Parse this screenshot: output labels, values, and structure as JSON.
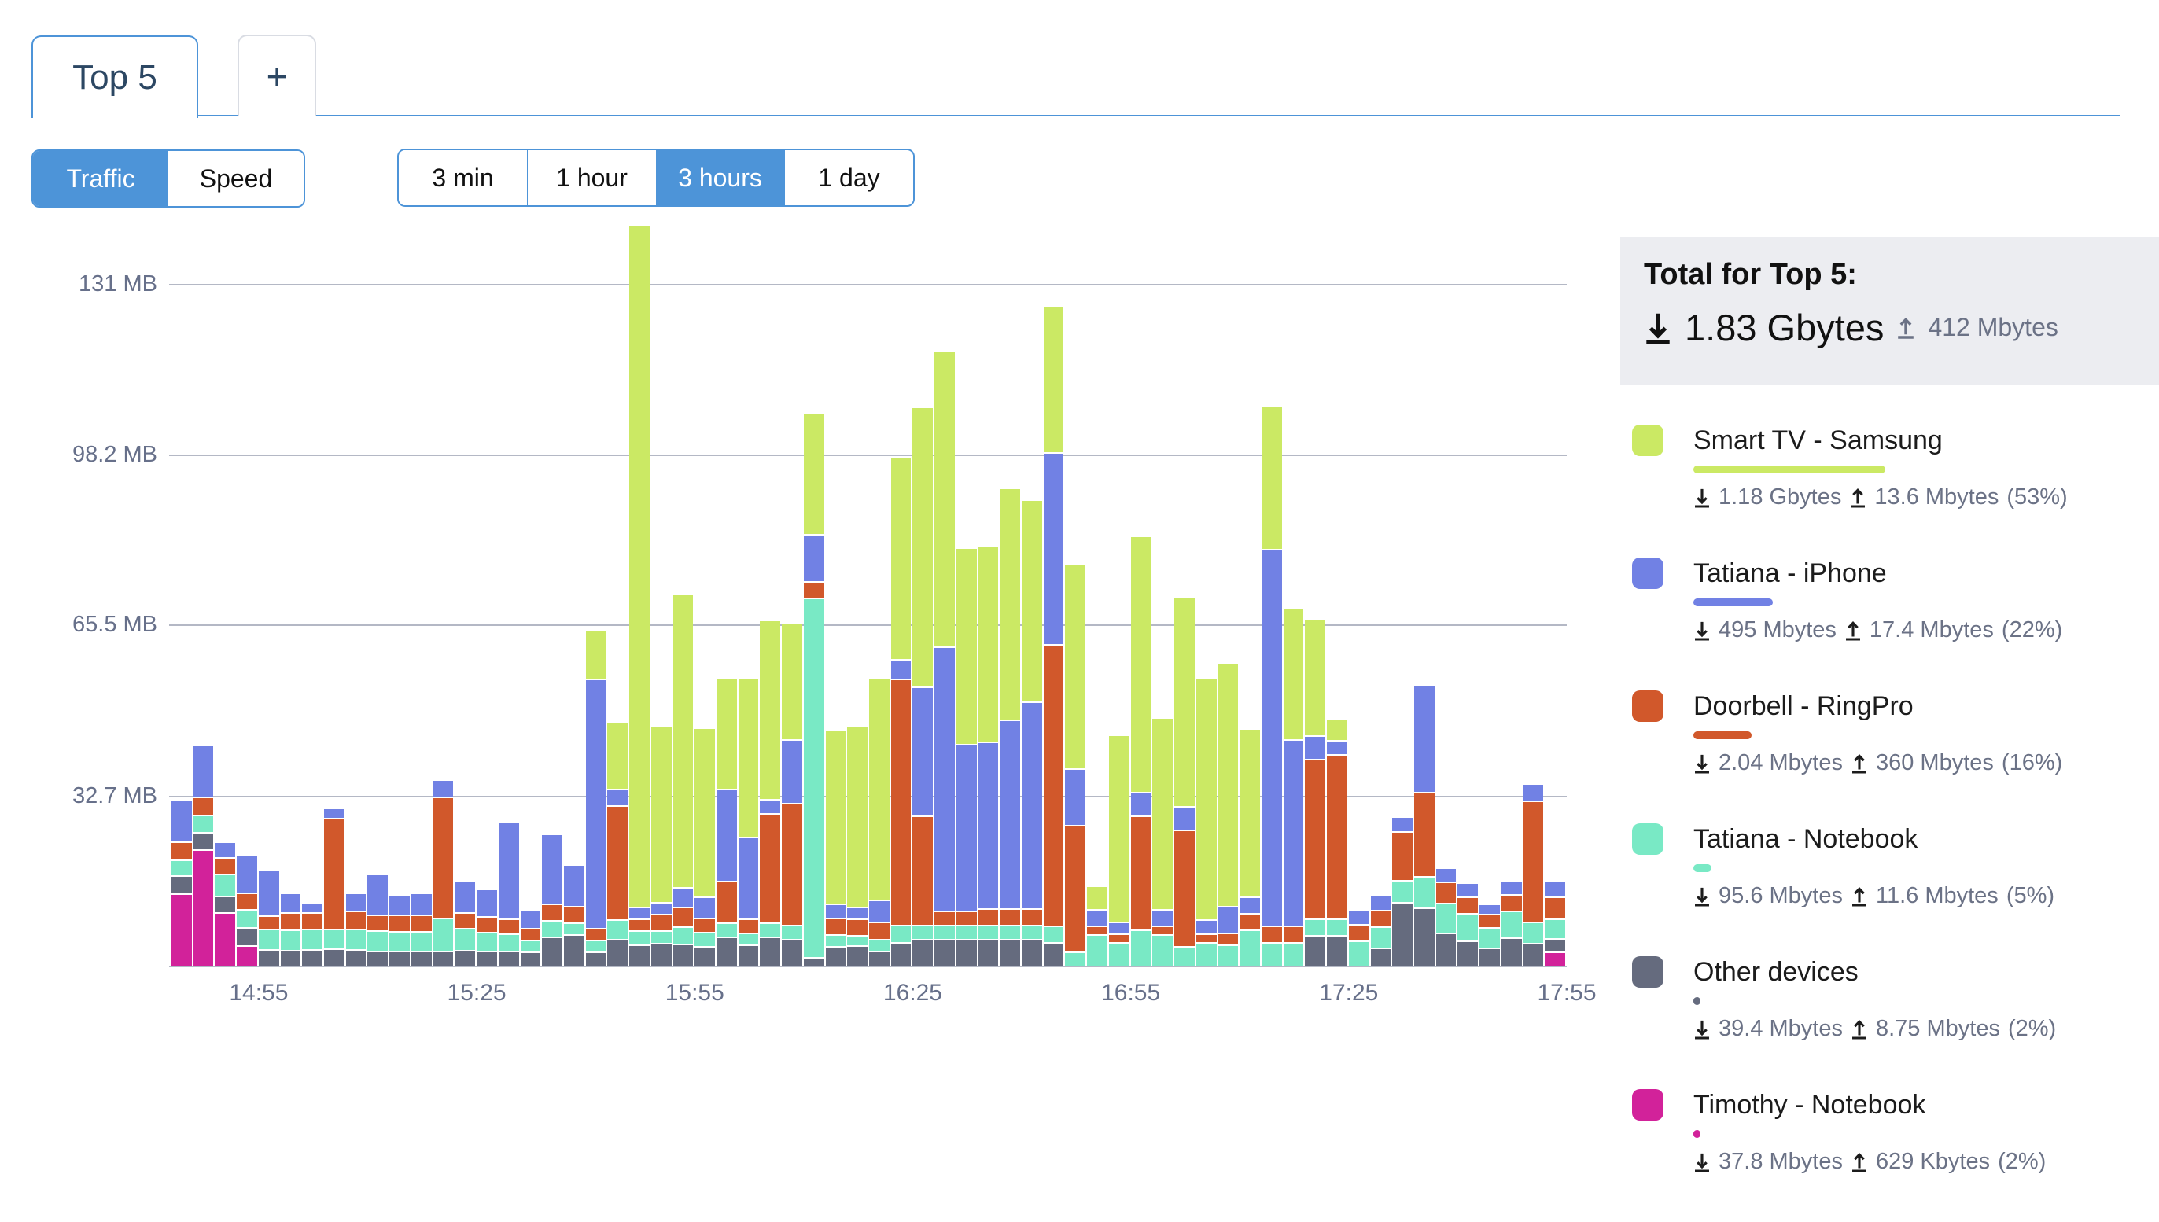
{
  "tabs": {
    "active_label": "Top 5",
    "add_label": "+"
  },
  "mode_toggle": {
    "options": [
      "Traffic",
      "Speed"
    ],
    "active": "Traffic"
  },
  "range_toggle": {
    "options": [
      "3 min",
      "1 hour",
      "3 hours",
      "1 day"
    ],
    "active": "3 hours"
  },
  "colors": {
    "accent": "#4d94d8",
    "smart_tv": "#cbe964",
    "iphone": "#7181e4",
    "doorbell": "#d1582b",
    "notebook": "#79e9c5",
    "other": "#656b7e",
    "timothy": "#d2229a",
    "gridline": "#b4b8c5"
  },
  "chart_data": {
    "type": "bar",
    "stacked": true,
    "unit": "MB",
    "title": "",
    "xlabel": "",
    "ylabel": "",
    "ylim": [
      0,
      142
    ],
    "grid": true,
    "legend_position": "right",
    "y_ticks": [
      {
        "label": "131 MB",
        "value": 131
      },
      {
        "label": "98.2 MB",
        "value": 98.2
      },
      {
        "label": "65.5 MB",
        "value": 65.5
      },
      {
        "label": "32.7 MB",
        "value": 32.7
      }
    ],
    "x_ticks": [
      {
        "label": "14:55",
        "edge_index": 4
      },
      {
        "label": "15:25",
        "edge_index": 14
      },
      {
        "label": "15:55",
        "edge_index": 24
      },
      {
        "label": "16:25",
        "edge_index": 34
      },
      {
        "label": "16:55",
        "edge_index": 44
      },
      {
        "label": "17:25",
        "edge_index": 54
      },
      {
        "label": "17:55",
        "edge_index": 64
      }
    ],
    "bar_interval_min": 3,
    "series_order": [
      "timothy",
      "other",
      "notebook",
      "doorbell",
      "iphone",
      "smart_tv"
    ],
    "series_names": {
      "timothy": "Timothy - Notebook",
      "other": "Other devices",
      "notebook": "Tatiana - Notebook",
      "doorbell": "Doorbell - RingPro",
      "iphone": "Tatiana - iPhone",
      "smart_tv": "Smart TV - Samsung"
    },
    "bars": [
      [
        13.6,
        3.2,
        2.7,
        3.2,
        7.9,
        0
      ],
      [
        22,
        3,
        3,
        3.2,
        9.7,
        0
      ],
      [
        9.9,
        2.8,
        4,
        2.9,
        2.7,
        0
      ],
      [
        3.7,
        3.1,
        3.1,
        2.8,
        6.9,
        0
      ],
      [
        0,
        2.8,
        3.6,
        2.2,
        8.5,
        0
      ],
      [
        0,
        2.7,
        3.6,
        3,
        3.4,
        0
      ],
      [
        0,
        2.8,
        3.6,
        2.8,
        1.5,
        0
      ],
      [
        0,
        3,
        3.5,
        21,
        1.6,
        0
      ],
      [
        0,
        2.8,
        3.6,
        3.2,
        3.1,
        0
      ],
      [
        0,
        2.5,
        3.6,
        2.7,
        7.5,
        0
      ],
      [
        0,
        2.5,
        3.4,
        2.8,
        3.7,
        0
      ],
      [
        0,
        2.5,
        3.4,
        2.8,
        4,
        0
      ],
      [
        0,
        2.5,
        6,
        23,
        3,
        0
      ],
      [
        0,
        2.7,
        4,
        2.7,
        5.9,
        0
      ],
      [
        0,
        2.5,
        3.3,
        2.7,
        5,
        0
      ],
      [
        0,
        2.5,
        3,
        2.5,
        18.5,
        0
      ],
      [
        0,
        2.4,
        1.9,
        1.9,
        3.1,
        0
      ],
      [
        0,
        5.3,
        2.9,
        2.9,
        13.2,
        0
      ],
      [
        0,
        5.8,
        1.9,
        2.9,
        7.7,
        0
      ],
      [
        0,
        2.4,
        1.9,
        1.9,
        47.6,
        9.1
      ],
      [
        0,
        4.8,
        3.4,
        21.6,
        2.9,
        12.5
      ],
      [
        0,
        3.8,
        2.4,
        1.9,
        1.9,
        130.6
      ],
      [
        0,
        4.1,
        2.1,
        2.9,
        1.9,
        33.7
      ],
      [
        0,
        4,
        3,
        3.5,
        3.5,
        56
      ],
      [
        0,
        3.4,
        2.4,
        2.4,
        3.8,
        32.2
      ],
      [
        0,
        5.3,
        2.4,
        7.7,
        17.3,
        21.2
      ],
      [
        0,
        3.8,
        1.9,
        2.4,
        15.4,
        30.3
      ],
      [
        0,
        5.3,
        2.4,
        20.7,
        2.4,
        34.1
      ],
      [
        0,
        4.8,
        2.4,
        23.1,
        12,
        22.1
      ],
      [
        0,
        1.4,
        68.8,
        2.9,
        8.7,
        23.1
      ],
      [
        0,
        3.4,
        1.9,
        2.9,
        2.4,
        33.2
      ],
      [
        0,
        3.6,
        1.7,
        2.9,
        1.9,
        34.6
      ],
      [
        0,
        2.5,
        2,
        3,
        4,
        42.5
      ],
      [
        0,
        4.3,
        3,
        47,
        3.4,
        38.5
      ],
      [
        0,
        4.8,
        2.4,
        20.7,
        24.5,
        53.4
      ],
      [
        0,
        4.8,
        2.4,
        2.4,
        50.5,
        56.7
      ],
      [
        0,
        4.8,
        2.4,
        2.4,
        31.7,
        37.5
      ],
      [
        0,
        4.8,
        2.4,
        2.9,
        31.7,
        37.5
      ],
      [
        0,
        4.8,
        2.4,
        2.9,
        36,
        44.3
      ],
      [
        0,
        4.8,
        2.4,
        2.9,
        39.4,
        38.5
      ],
      [
        0,
        4.3,
        2.9,
        53.8,
        36.5,
        28
      ],
      [
        0,
        0,
        2.4,
        24,
        10.6,
        39
      ],
      [
        0,
        0,
        5.8,
        1.4,
        2.9,
        4.3
      ],
      [
        0,
        0,
        4.3,
        1.4,
        1.9,
        35.6
      ],
      [
        0,
        0,
        6.7,
        21.6,
        4.3,
        49
      ],
      [
        0,
        0,
        5.8,
        1.4,
        2.9,
        36.5
      ],
      [
        0,
        0,
        3.4,
        22,
        4.3,
        40
      ],
      [
        0,
        0,
        4.3,
        1.4,
        2.4,
        46
      ],
      [
        0,
        0,
        3.8,
        1.9,
        4.8,
        46.6
      ],
      [
        0,
        0,
        6.7,
        2.9,
        2.9,
        32
      ],
      [
        0,
        0,
        4.3,
        2.9,
        72,
        27.4
      ],
      [
        0,
        0,
        4.3,
        2.9,
        35.5,
        25
      ],
      [
        0,
        5.6,
        2.9,
        30.3,
        4.3,
        22
      ],
      [
        0,
        5.6,
        2.9,
        31.2,
        2.4,
        3.8
      ],
      [
        0,
        0,
        4.6,
        2.9,
        2.4,
        0
      ],
      [
        0,
        3.2,
        3.8,
        2.9,
        2.6,
        0
      ],
      [
        0,
        12,
        4,
        9,
        2.5,
        0
      ],
      [
        0,
        10.9,
        5.8,
        15.9,
        20.4,
        0
      ],
      [
        0,
        6,
        5.5,
        3.8,
        2.4,
        0
      ],
      [
        0,
        4.6,
        5,
        2.9,
        2.4,
        0
      ],
      [
        0,
        3.2,
        3.7,
        2.3,
        1.7,
        0
      ],
      [
        0,
        5.1,
        4.8,
        2.9,
        2.4,
        0
      ],
      [
        0,
        4.1,
        3.8,
        23,
        3,
        0
      ],
      [
        2.4,
        2.2,
        3.4,
        4,
        2.9,
        0
      ]
    ]
  },
  "legend": {
    "total": {
      "title": "Total for Top 5:",
      "download": "1.83 Gbytes",
      "upload": "412 Mbytes"
    },
    "items": [
      {
        "key": "smart_tv",
        "name": "Smart TV - Samsung",
        "download": "1.18 Gbytes",
        "upload": "13.6 Mbytes",
        "share_label": "(53%)",
        "share_pct": 53
      },
      {
        "key": "iphone",
        "name": "Tatiana - iPhone",
        "download": "495 Mbytes",
        "upload": "17.4 Mbytes",
        "share_label": "(22%)",
        "share_pct": 22
      },
      {
        "key": "doorbell",
        "name": "Doorbell - RingPro",
        "download": "2.04 Mbytes",
        "upload": "360 Mbytes",
        "share_label": "(16%)",
        "share_pct": 16
      },
      {
        "key": "notebook",
        "name": "Tatiana - Notebook",
        "download": "95.6 Mbytes",
        "upload": "11.6 Mbytes",
        "share_label": "(5%)",
        "share_pct": 5
      },
      {
        "key": "other",
        "name": "Other devices",
        "download": "39.4 Mbytes",
        "upload": "8.75 Mbytes",
        "share_label": "(2%)",
        "share_pct": 2
      },
      {
        "key": "timothy",
        "name": "Timothy - Notebook",
        "download": "37.8 Mbytes",
        "upload": "629 Kbytes",
        "share_label": "(2%)",
        "share_pct": 2
      }
    ]
  }
}
